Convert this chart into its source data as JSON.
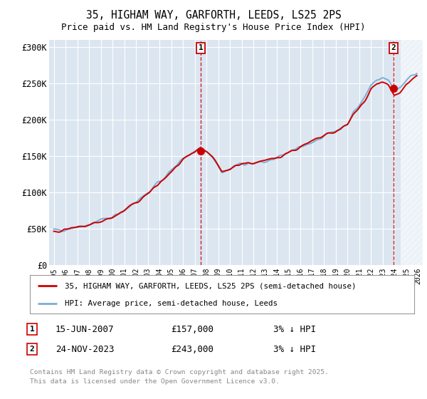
{
  "title1": "35, HIGHAM WAY, GARFORTH, LEEDS, LS25 2PS",
  "title2": "Price paid vs. HM Land Registry's House Price Index (HPI)",
  "bg_color": "#dce6f1",
  "line1_color": "#cc0000",
  "line2_color": "#7bafd4",
  "vline1_x": 2007.5,
  "vline2_x": 2023.92,
  "sale1_y": 157000,
  "sale2_y": 243000,
  "sale1_date": "15-JUN-2007",
  "sale1_price": "£157,000",
  "sale1_note": "3% ↓ HPI",
  "sale2_date": "24-NOV-2023",
  "sale2_price": "£243,000",
  "sale2_note": "3% ↓ HPI",
  "legend1": "35, HIGHAM WAY, GARFORTH, LEEDS, LS25 2PS (semi-detached house)",
  "legend2": "HPI: Average price, semi-detached house, Leeds",
  "footer": "Contains HM Land Registry data © Crown copyright and database right 2025.\nThis data is licensed under the Open Government Licence v3.0.",
  "xmin": 1994.6,
  "xmax": 2026.4,
  "ymin": 0,
  "ymax": 310000,
  "yticks": [
    0,
    50000,
    100000,
    150000,
    200000,
    250000,
    300000
  ],
  "ytick_labels": [
    "£0",
    "£50K",
    "£100K",
    "£150K",
    "£200K",
    "£250K",
    "£300K"
  ],
  "future_start": 2024.5,
  "ann1_label": "1",
  "ann2_label": "2"
}
